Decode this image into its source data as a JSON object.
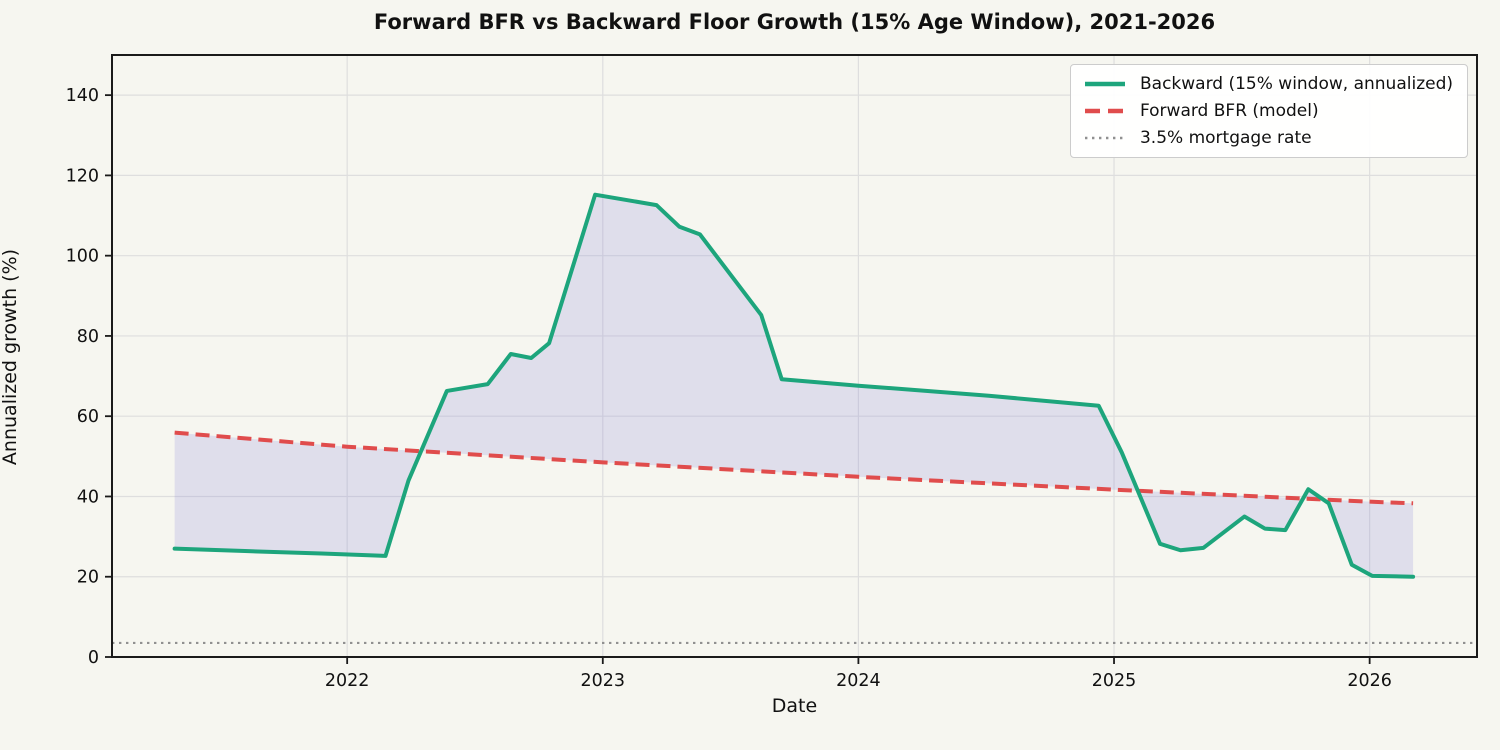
{
  "figure": {
    "title": "Forward BFR vs Backward Floor Growth (15% Age Window), 2021-2026",
    "xlabel": "Date",
    "ylabel": "Annualized growth (%)"
  },
  "colors": {
    "background": "#f6f6f0",
    "grid": "#dedede",
    "spine": "#1a1a1a",
    "backward_line": "#1da57c",
    "forward_line": "#e04c4c",
    "mortgage_line": "#909090",
    "fill_between": "rgba(130,120,215,0.19)",
    "legend_border": "#cccccc",
    "legend_background": "rgba(255,255,255,0.92)"
  },
  "chart_data": {
    "type": "line",
    "title": "Forward BFR vs Backward Floor Growth (15% Age Window), 2021-2026",
    "xlabel": "Date",
    "ylabel": "Annualized growth (%)",
    "xlim": [
      2021.08,
      2026.42
    ],
    "ylim": [
      0,
      150
    ],
    "x_ticks": [
      2022,
      2023,
      2024,
      2025,
      2026
    ],
    "x_tick_labels": [
      "2022",
      "2023",
      "2024",
      "2025",
      "2026"
    ],
    "y_ticks": [
      0,
      20,
      40,
      60,
      80,
      100,
      120,
      140
    ],
    "y_tick_labels": [
      "0",
      "20",
      "40",
      "60",
      "80",
      "100",
      "120",
      "140"
    ],
    "grid": true,
    "legend_position": "upper right",
    "fill_between": {
      "series_a": "Backward (15% window, annualized)",
      "series_b": "Forward BFR (model)"
    },
    "series": [
      {
        "name": "Backward (15% window, annualized)",
        "style": "solid",
        "color": "#1da57c",
        "linewidth": 4,
        "points": [
          [
            2021.325,
            27.0
          ],
          [
            2021.6,
            26.4
          ],
          [
            2021.9,
            25.8
          ],
          [
            2022.15,
            25.2
          ],
          [
            2022.24,
            44.0
          ],
          [
            2022.39,
            66.3
          ],
          [
            2022.55,
            68.0
          ],
          [
            2022.64,
            75.5
          ],
          [
            2022.72,
            74.5
          ],
          [
            2022.79,
            78.2
          ],
          [
            2022.97,
            115.2
          ],
          [
            2023.21,
            112.6
          ],
          [
            2023.3,
            107.2
          ],
          [
            2023.38,
            105.3
          ],
          [
            2023.62,
            85.2
          ],
          [
            2023.7,
            69.2
          ],
          [
            2024.0,
            67.6
          ],
          [
            2024.51,
            65.1
          ],
          [
            2024.94,
            62.6
          ],
          [
            2025.03,
            51.0
          ],
          [
            2025.18,
            28.2
          ],
          [
            2025.26,
            26.6
          ],
          [
            2025.35,
            27.2
          ],
          [
            2025.51,
            35.0
          ],
          [
            2025.59,
            32.0
          ],
          [
            2025.67,
            31.6
          ],
          [
            2025.76,
            41.8
          ],
          [
            2025.84,
            38.3
          ],
          [
            2025.93,
            23.0
          ],
          [
            2026.01,
            20.2
          ],
          [
            2026.17,
            20.0
          ]
        ]
      },
      {
        "name": "Forward BFR (model)",
        "style": "dashed",
        "color": "#e04c4c",
        "linewidth": 4,
        "points": [
          [
            2021.325,
            55.9
          ],
          [
            2022.0,
            52.4
          ],
          [
            2023.0,
            48.5
          ],
          [
            2024.0,
            44.9
          ],
          [
            2025.0,
            41.7
          ],
          [
            2026.0,
            38.7
          ],
          [
            2026.17,
            38.3
          ]
        ]
      },
      {
        "name": "3.5% mortgage rate",
        "style": "dotted",
        "color": "#909090",
        "linewidth": 2.2,
        "hline_value": 3.5
      }
    ]
  },
  "legend": {
    "items": [
      {
        "label": "Backward (15% window, annualized)"
      },
      {
        "label": "Forward BFR (model)"
      },
      {
        "label": "3.5% mortgage rate"
      }
    ]
  }
}
